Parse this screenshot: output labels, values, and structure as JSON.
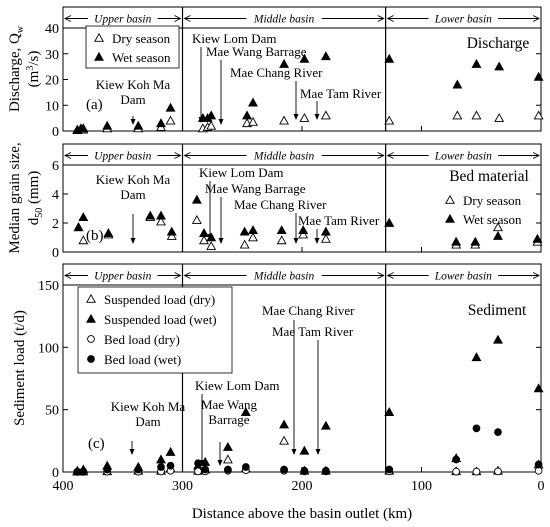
{
  "chart_data": [
    {
      "type": "scatter",
      "panel_label": "(a)",
      "title": "Discharge",
      "ylabel_lines": [
        "Discharge, Q",
        "w",
        "(m",
        "3",
        "/s)"
      ],
      "xlabel": "",
      "xlim": [
        400,
        0
      ],
      "ylim": [
        0,
        40
      ],
      "yticks": [
        0,
        10,
        20,
        30,
        40
      ],
      "basins": [
        "Upper basin",
        "Middle basin",
        "Lower basin"
      ],
      "series": [
        {
          "name": "Dry season",
          "marker": "triangle-open",
          "x": [
            388,
            385,
            383,
            363,
            337,
            318,
            310,
            283,
            279,
            276,
            246,
            241,
            215,
            198,
            180,
            127,
            70,
            54,
            35,
            2
          ],
          "y": [
            0.3,
            0.5,
            0.5,
            1.0,
            1.0,
            1.5,
            4.0,
            1.0,
            1.5,
            2.0,
            3.0,
            3.5,
            4.0,
            5.0,
            6.0,
            4.0,
            6.0,
            6.0,
            5.0,
            6.0
          ]
        },
        {
          "name": "Wet season",
          "marker": "triangle-filled",
          "x": [
            388,
            385,
            383,
            363,
            337,
            318,
            310,
            283,
            279,
            276,
            246,
            241,
            215,
            198,
            180,
            127,
            70,
            54,
            35,
            2
          ],
          "y": [
            0.5,
            1.0,
            1.0,
            2.0,
            2.0,
            3.0,
            9.0,
            5.0,
            5.0,
            6.0,
            6.0,
            11.0,
            26.0,
            28.0,
            29.0,
            28.0,
            18.0,
            26.0,
            25.0,
            21.0
          ]
        }
      ],
      "annotations": [
        {
          "lines": [
            "Kiew Koh Ma",
            "Dam"
          ],
          "x_value": 345
        },
        {
          "lines": [
            "Kiew Lom Dam"
          ],
          "x_value": 289
        },
        {
          "lines": [
            "Mae Wang Barrage"
          ],
          "x_value": 270
        },
        {
          "lines": [
            "Mae Chang River"
          ],
          "x_value": 212
        },
        {
          "lines": [
            "Mae Tam River"
          ],
          "x_value": 193
        }
      ]
    },
    {
      "type": "scatter",
      "panel_label": "(b)",
      "title": "Bed material",
      "ylabel_lines": [
        "Median grain size,",
        "d",
        "50",
        "(mm)"
      ],
      "xlabel": "",
      "xlim": [
        400,
        0
      ],
      "ylim": [
        0,
        6
      ],
      "yticks": [
        0,
        2,
        4,
        6
      ],
      "basins": [
        "Upper basin",
        "Middle basin",
        "Lower basin"
      ],
      "series": [
        {
          "name": "Dry season",
          "marker": "triangle-open",
          "x": [
            387,
            383,
            362,
            327,
            318,
            309,
            288,
            282,
            276,
            248,
            241,
            217,
            199,
            180,
            127,
            71,
            55,
            36,
            3
          ],
          "y": [
            1.7,
            0.8,
            1.2,
            2.4,
            2.1,
            1.1,
            2.2,
            0.8,
            0.4,
            0.5,
            1.0,
            0.8,
            1.2,
            0.9,
            2.0,
            0.5,
            0.5,
            1.7,
            0.7
          ]
        },
        {
          "name": "Wet season",
          "marker": "triangle-filled",
          "x": [
            387,
            383,
            362,
            327,
            318,
            309,
            288,
            282,
            276,
            248,
            241,
            217,
            199,
            180,
            127,
            71,
            55,
            36,
            3
          ],
          "y": [
            1.7,
            2.4,
            1.3,
            2.5,
            2.5,
            1.4,
            3.6,
            1.3,
            1.0,
            1.4,
            1.5,
            1.5,
            1.5,
            1.4,
            2.0,
            0.7,
            0.7,
            1.1,
            0.9
          ]
        }
      ],
      "annotations": [
        {
          "lines": [
            "Kiew Koh Ma",
            "Dam"
          ],
          "x_value": 345
        },
        {
          "lines": [
            "Kiew Lom Dam"
          ],
          "x_value": 289
        },
        {
          "lines": [
            "Mae Wang Barrage"
          ],
          "x_value": 270
        },
        {
          "lines": [
            "Mae Chang River"
          ],
          "x_value": 212
        },
        {
          "lines": [
            "Mae Tam River"
          ],
          "x_value": 193
        }
      ]
    },
    {
      "type": "scatter",
      "panel_label": "(c)",
      "title": "Sediment",
      "ylabel_lines": [
        "Sediment load (t/d)"
      ],
      "xlabel": "Distance above the basin outlet (km)",
      "xlim": [
        400,
        0
      ],
      "ylim": [
        0,
        150
      ],
      "yticks": [
        0,
        50,
        100,
        150
      ],
      "xticks": [
        400,
        300,
        200,
        100,
        0
      ],
      "basins": [
        "Upper basin",
        "Middle basin",
        "Lower basin"
      ],
      "series": [
        {
          "name": "Suspended load (dry)",
          "marker": "triangle-open",
          "x": [
            388,
            383,
            363,
            337,
            318,
            310,
            287,
            281,
            262,
            247,
            215,
            198,
            180,
            127,
            71,
            54,
            36,
            2
          ],
          "y": [
            0.2,
            0.3,
            0.5,
            1.0,
            1.0,
            3.0,
            1.0,
            2.0,
            10.0,
            3.0,
            25.0,
            1.0,
            1.0,
            1.0,
            0.5,
            0.5,
            1.0,
            6.0
          ]
        },
        {
          "name": "Suspended load (wet)",
          "marker": "triangle-filled",
          "x": [
            388,
            383,
            363,
            337,
            318,
            310,
            287,
            281,
            262,
            247,
            215,
            198,
            180,
            127,
            71,
            54,
            36,
            2
          ],
          "y": [
            1.0,
            2.0,
            5.0,
            4.0,
            10.0,
            16.0,
            5.0,
            8.0,
            20.0,
            48.0,
            38.0,
            17.0,
            37.0,
            48.0,
            11.0,
            92.0,
            106.0,
            67.0
          ]
        },
        {
          "name": "Bed load (dry)",
          "marker": "circle-open",
          "x": [
            388,
            383,
            363,
            337,
            318,
            310,
            287,
            281,
            262,
            247,
            215,
            198,
            180,
            127,
            71,
            54,
            36,
            2
          ],
          "y": [
            0.1,
            0.1,
            0.3,
            0.3,
            0.5,
            1.0,
            0.5,
            0.5,
            1.0,
            1.5,
            1.0,
            0.5,
            0.5,
            0.5,
            0.3,
            0.3,
            0.5,
            1.0
          ]
        },
        {
          "name": "Bed load (wet)",
          "marker": "circle-filled",
          "x": [
            388,
            383,
            363,
            337,
            318,
            310,
            287,
            281,
            262,
            247,
            215,
            198,
            180,
            127,
            71,
            54,
            36,
            2
          ],
          "y": [
            0.2,
            0.5,
            2.0,
            2.0,
            4.0,
            5.0,
            7.0,
            2.0,
            2.0,
            4.0,
            2.0,
            1.0,
            1.0,
            2.0,
            10.0,
            35.0,
            32.0,
            6.0
          ]
        }
      ],
      "annotations": [
        {
          "lines": [
            "Kiew Koh Ma",
            "Dam"
          ],
          "x_value": 345
        },
        {
          "lines": [
            "Kiew Lom Dam"
          ],
          "x_value": 289
        },
        {
          "lines": [
            "Mae Wang",
            "Barrage"
          ],
          "x_value": 270
        },
        {
          "lines": [
            "Mae Chang River"
          ],
          "x_value": 212
        },
        {
          "lines": [
            "Mae Tam River"
          ],
          "x_value": 193
        }
      ]
    }
  ]
}
